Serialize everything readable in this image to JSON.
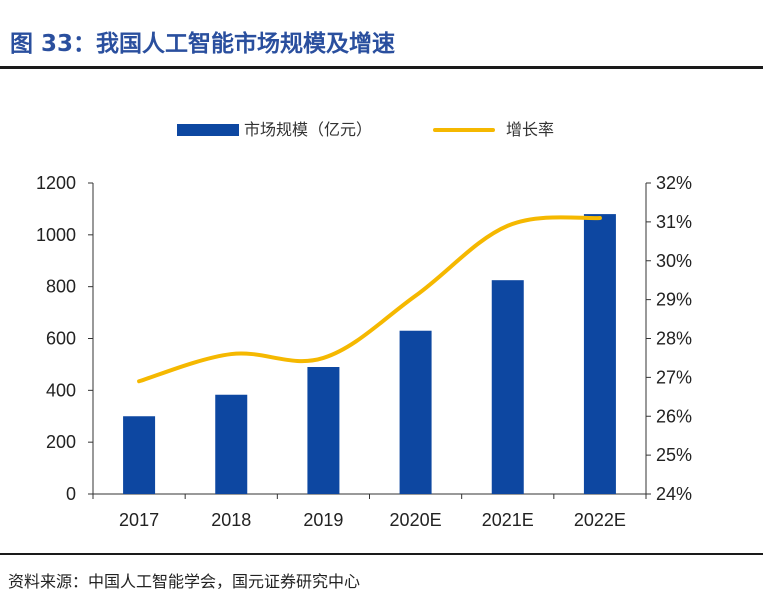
{
  "title": "图 33：我国人工智能市场规模及增速",
  "source": "资料来源：中国人工智能学会，国元证券研究中心",
  "colors": {
    "bar": "#0d47a1",
    "line": "#f5b800",
    "title": "#2a4f9e"
  },
  "chart_data": {
    "type": "bar",
    "categories": [
      "2017",
      "2018",
      "2019",
      "2020E",
      "2021E",
      "2022E"
    ],
    "series": [
      {
        "name": "市场规模（亿元）",
        "type": "bar",
        "axis": "left",
        "values": [
          300,
          383,
          490,
          630,
          825,
          1080
        ]
      },
      {
        "name": "增长率",
        "type": "line",
        "axis": "right",
        "values": [
          26.9,
          27.6,
          27.5,
          29.1,
          30.9,
          31.1
        ]
      }
    ],
    "left_axis": {
      "ylim": [
        0,
        1200
      ],
      "ticks": [
        "0",
        "200",
        "400",
        "600",
        "800",
        "1000",
        "1200"
      ]
    },
    "right_axis": {
      "ylim": [
        24,
        32
      ],
      "ticks": [
        "24%",
        "25%",
        "26%",
        "27%",
        "28%",
        "29%",
        "30%",
        "31%",
        "32%"
      ]
    },
    "legend_position": "top-center",
    "grid": false
  }
}
